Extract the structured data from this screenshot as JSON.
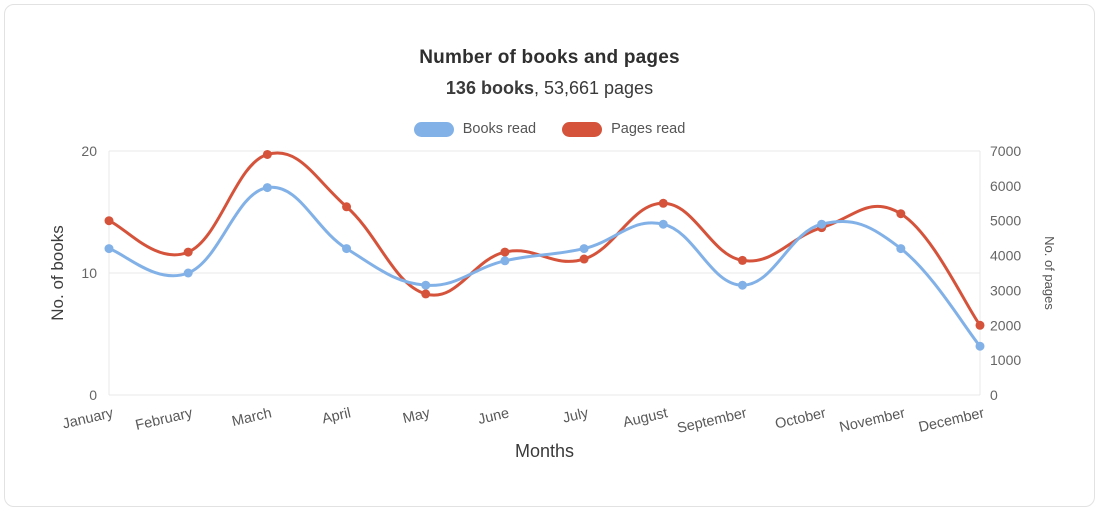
{
  "card": {
    "title": "Number of books and pages",
    "subtitle_bold": "136 books",
    "subtitle_regular": ", 53,661 pages"
  },
  "chart_data": {
    "type": "line",
    "title": "Number of books and pages",
    "subtitle": "136 books, 53,661 pages",
    "totals": {
      "books": "136",
      "pages": "53,661"
    },
    "categories": [
      "January",
      "February",
      "March",
      "April",
      "May",
      "June",
      "July",
      "August",
      "September",
      "October",
      "November",
      "December"
    ],
    "series": [
      {
        "name": "Books read",
        "axis": "left",
        "color": "#82b1e8",
        "values": [
          12,
          10,
          17,
          12,
          9,
          11,
          12,
          14,
          9,
          14,
          12,
          4
        ]
      },
      {
        "name": "Pages read",
        "axis": "right",
        "color": "#d5533b",
        "values": [
          5000,
          4100,
          6900,
          5400,
          2900,
          4100,
          3900,
          5500,
          3861,
          4800,
          5200,
          2000
        ]
      }
    ],
    "left_axis": {
      "label": "No. of books",
      "min": 0,
      "max": 20,
      "ticks": [
        0,
        10,
        20
      ]
    },
    "right_axis": {
      "label": "No. of pages",
      "min": 0,
      "max": 7000,
      "ticks": [
        0,
        1000,
        2000,
        3000,
        4000,
        5000,
        6000,
        7000
      ]
    },
    "x_axis": {
      "label": "Months"
    },
    "grid": true,
    "legend_position": "top",
    "line_tension": 0.4
  }
}
